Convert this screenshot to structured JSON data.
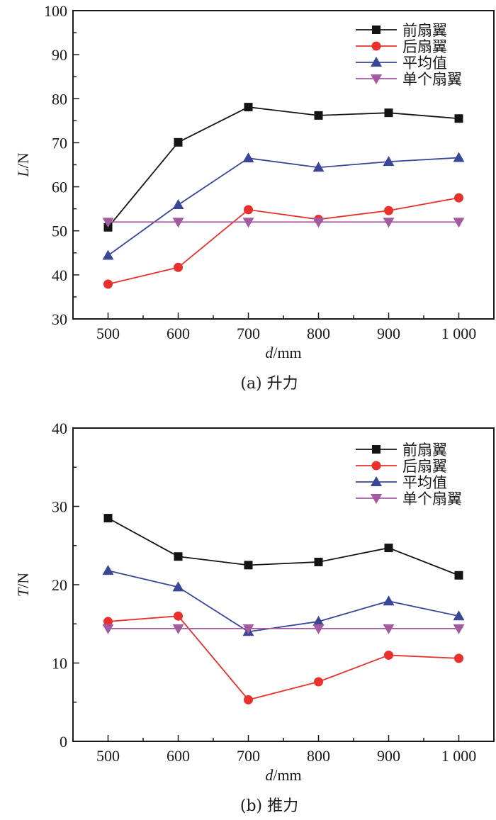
{
  "legend_colors": {
    "front": "#141414",
    "rear": "#e8302c",
    "avg": "#3a4796",
    "single": "#a35aa0"
  },
  "chart_data": [
    {
      "type": "line",
      "title": "",
      "caption": "(a) 升力",
      "xlabel_italic": "d",
      "xlabel_rest": "/mm",
      "ylabel_italic": "L",
      "ylabel_rest": "/N",
      "x": [
        500,
        600,
        700,
        800,
        900,
        1000
      ],
      "x_tick_labels": [
        "500",
        "600",
        "700",
        "800",
        "900",
        "1 000"
      ],
      "xlim": [
        450,
        1050
      ],
      "ylim": [
        30,
        100
      ],
      "y_ticks": [
        30,
        40,
        50,
        60,
        70,
        80,
        90,
        100
      ],
      "y_tick_labels": [
        "30",
        "40",
        "50",
        "60",
        "70",
        "80",
        "90",
        "100"
      ],
      "legend_position": "top-right",
      "grid": false,
      "series": [
        {
          "key": "front",
          "name": "前扇翼",
          "marker": "square",
          "values": [
            50.8,
            70.1,
            78.1,
            76.2,
            76.8,
            75.5
          ]
        },
        {
          "key": "rear",
          "name": "后扇翼",
          "marker": "circle",
          "values": [
            37.9,
            41.7,
            54.8,
            52.6,
            54.6,
            57.5
          ]
        },
        {
          "key": "avg",
          "name": "平均值",
          "marker": "triangle-up",
          "values": [
            44.4,
            55.9,
            66.5,
            64.4,
            65.7,
            66.6
          ]
        },
        {
          "key": "single",
          "name": "单个扇翼",
          "marker": "triangle-down",
          "values": [
            52.0,
            52.0,
            52.0,
            52.0,
            52.0,
            52.0
          ]
        }
      ]
    },
    {
      "type": "line",
      "title": "",
      "caption": "(b) 推力",
      "xlabel_italic": "d",
      "xlabel_rest": "/mm",
      "ylabel_italic": "T",
      "ylabel_rest": "/N",
      "x": [
        500,
        600,
        700,
        800,
        900,
        1000
      ],
      "x_tick_labels": [
        "500",
        "600",
        "700",
        "800",
        "900",
        "1 000"
      ],
      "xlim": [
        450,
        1050
      ],
      "ylim": [
        0,
        40
      ],
      "y_ticks": [
        0,
        10,
        20,
        30,
        40
      ],
      "y_tick_labels": [
        "0",
        "10",
        "20",
        "30",
        "40"
      ],
      "legend_position": "top-right",
      "grid": false,
      "series": [
        {
          "key": "front",
          "name": "前扇翼",
          "marker": "square",
          "values": [
            28.5,
            23.6,
            22.5,
            22.9,
            24.7,
            21.2
          ]
        },
        {
          "key": "rear",
          "name": "后扇翼",
          "marker": "circle",
          "values": [
            15.3,
            16.0,
            5.3,
            7.6,
            11.0,
            10.6
          ]
        },
        {
          "key": "avg",
          "name": "平均值",
          "marker": "triangle-up",
          "values": [
            21.8,
            19.7,
            14.0,
            15.3,
            17.9,
            16.0
          ]
        },
        {
          "key": "single",
          "name": "单个扇翼",
          "marker": "triangle-down",
          "values": [
            14.4,
            14.4,
            14.4,
            14.4,
            14.4,
            14.4
          ]
        }
      ]
    }
  ]
}
